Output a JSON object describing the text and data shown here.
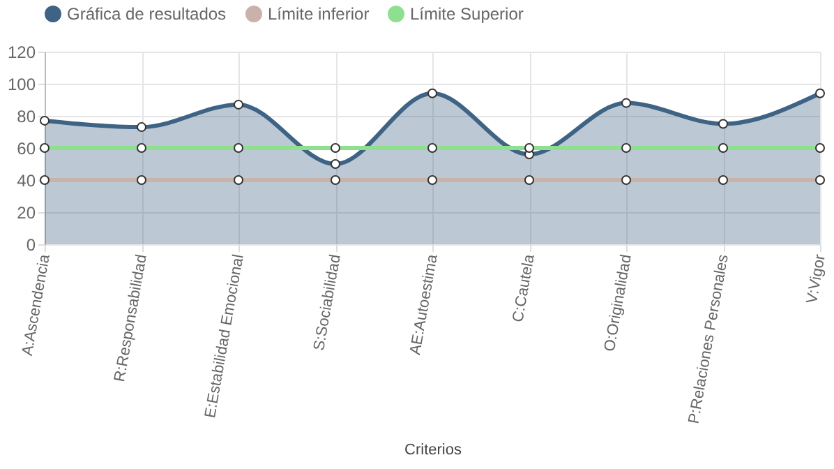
{
  "chart_data": {
    "type": "line",
    "xlabel": "Criterios",
    "categories": [
      "A:Ascendencia",
      "R:Responsabilidad",
      "E:Estabilidad Emocional",
      "S:Sociabilidad",
      "AE:Autoestima",
      "C:Cautela",
      "O:Originalidad",
      "P:Relaciones Personales",
      "V:Vigor"
    ],
    "series": [
      {
        "name": "Gráfica de resultados",
        "type": "area",
        "color": "#3e6385",
        "values": [
          77,
          73,
          87,
          50,
          94,
          56,
          88,
          75,
          94
        ]
      },
      {
        "name": "Límite inferior",
        "color": "#c9b2a8",
        "values": [
          40,
          40,
          40,
          40,
          40,
          40,
          40,
          40,
          40
        ]
      },
      {
        "name": "Límite Superior",
        "color": "#8ee08e",
        "values": [
          60,
          60,
          60,
          60,
          60,
          60,
          60,
          60,
          60
        ]
      }
    ],
    "ylim": [
      0,
      120
    ],
    "yticks": [
      0,
      20,
      40,
      60,
      80,
      100,
      120
    ],
    "grid": true,
    "legend": "top",
    "marker": "circle"
  }
}
